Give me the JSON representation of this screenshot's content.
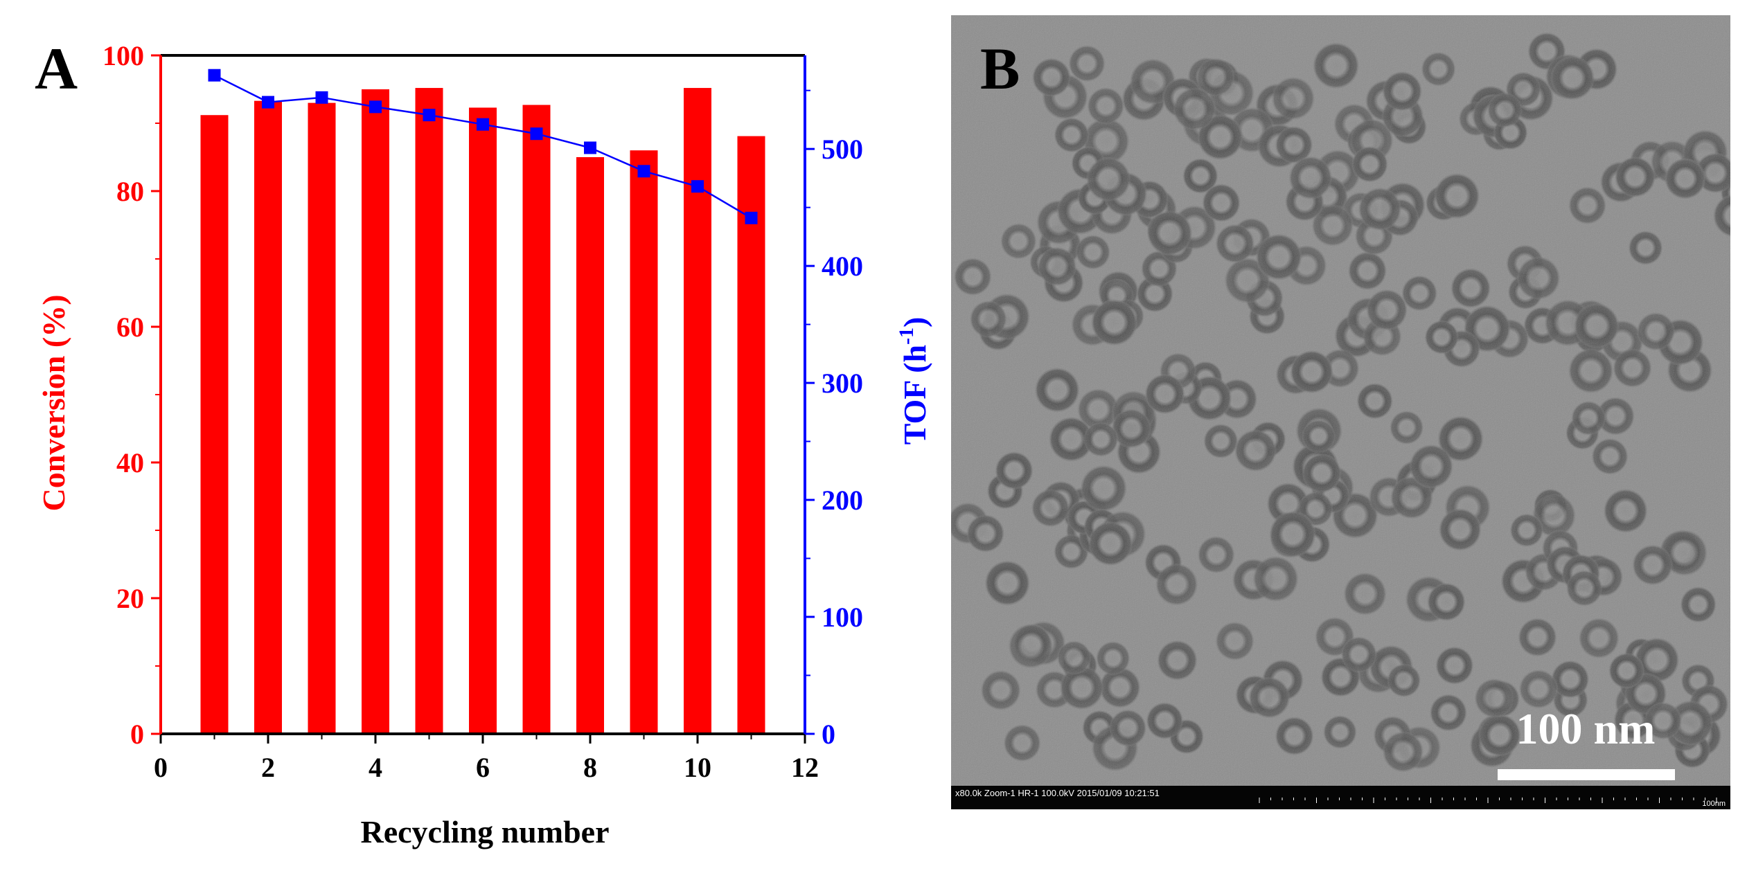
{
  "panel_a_label": "A",
  "panel_b_label": "B",
  "chart_data": {
    "type": "bar",
    "xlabel": "Recycling number",
    "ylabel_left": "Conversion (%)",
    "ylabel_right_main": "TOF (h",
    "ylabel_right_sup": "-1",
    "ylabel_right_end": ")",
    "xlim": [
      0,
      12
    ],
    "ylim_left": [
      0,
      100
    ],
    "ylim_right": [
      0,
      580
    ],
    "x_ticks": [
      0,
      2,
      4,
      6,
      8,
      10,
      12
    ],
    "y_left_ticks": [
      0,
      20,
      40,
      60,
      80,
      100
    ],
    "y_right_ticks": [
      0,
      100,
      200,
      300,
      400,
      500
    ],
    "grid": false,
    "legend": "none",
    "bar_color": "#ff0000",
    "line_color": "#0000ff",
    "series": [
      {
        "type": "bar",
        "axis": "left",
        "x": [
          1,
          2,
          3,
          4,
          5,
          6,
          7,
          8,
          9,
          10,
          11
        ],
        "values": [
          91.2,
          93.3,
          93.0,
          95.0,
          95.2,
          92.3,
          92.7,
          85.0,
          86.0,
          95.2,
          88.1
        ]
      },
      {
        "type": "line",
        "axis": "right",
        "x": [
          1,
          2,
          3,
          4,
          5,
          6,
          7,
          8,
          9,
          10,
          11
        ],
        "values": [
          563,
          540,
          544,
          536,
          529,
          521,
          513,
          501,
          481,
          468,
          441
        ]
      }
    ]
  },
  "tem": {
    "scale_label": "100 nm",
    "info_bar_text": "x80.0k Zoom-1 HR-1 100.0kV 2015/01/09 10:21:51",
    "info_bar_scale": "100nm"
  }
}
